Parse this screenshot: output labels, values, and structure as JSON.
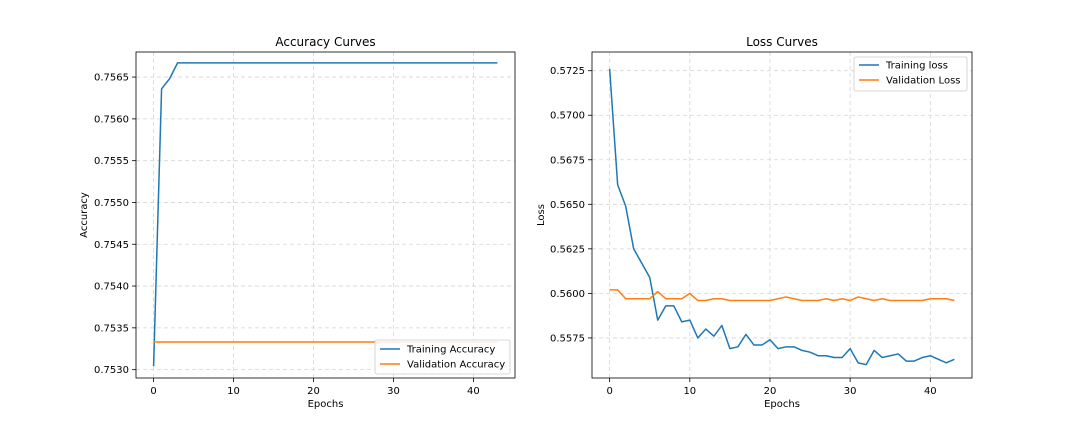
{
  "chart_data": [
    {
      "type": "line",
      "title": "Accuracy Curves",
      "xlabel": "Epochs",
      "ylabel": "Accuracy",
      "xlim": [
        -2.2,
        45.2
      ],
      "ylim": [
        0.7529,
        0.7568
      ],
      "xticks": [
        0,
        10,
        20,
        30,
        40
      ],
      "yticks": [
        0.753,
        0.7535,
        0.754,
        0.7545,
        0.755,
        0.7555,
        0.756,
        0.7565
      ],
      "ytick_labels": [
        "0.7530",
        "0.7535",
        "0.7540",
        "0.7545",
        "0.7550",
        "0.7555",
        "0.7560",
        "0.7565"
      ],
      "grid": true,
      "legend_position": "lower-right",
      "series": [
        {
          "name": "Training Accuracy",
          "color": "#1f77b4",
          "x": [
            0,
            1,
            2,
            3,
            4,
            5,
            6,
            7,
            8,
            9,
            10,
            11,
            12,
            13,
            14,
            15,
            16,
            17,
            18,
            19,
            20,
            21,
            22,
            23,
            24,
            25,
            26,
            27,
            28,
            29,
            30,
            31,
            32,
            33,
            34,
            35,
            36,
            37,
            38,
            39,
            40,
            41,
            42,
            43
          ],
          "values": [
            0.75304,
            0.75636,
            0.75648,
            0.75667,
            0.75667,
            0.75667,
            0.75667,
            0.75667,
            0.75667,
            0.75667,
            0.75667,
            0.75667,
            0.75667,
            0.75667,
            0.75667,
            0.75667,
            0.75667,
            0.75667,
            0.75667,
            0.75667,
            0.75667,
            0.75667,
            0.75667,
            0.75667,
            0.75667,
            0.75667,
            0.75667,
            0.75667,
            0.75667,
            0.75667,
            0.75667,
            0.75667,
            0.75667,
            0.75667,
            0.75667,
            0.75667,
            0.75667,
            0.75667,
            0.75667,
            0.75667,
            0.75667,
            0.75667,
            0.75667,
            0.75667
          ]
        },
        {
          "name": "Validation Accuracy",
          "color": "#ff7f0e",
          "x": [
            0,
            1,
            2,
            3,
            4,
            5,
            6,
            7,
            8,
            9,
            10,
            11,
            12,
            13,
            14,
            15,
            16,
            17,
            18,
            19,
            20,
            21,
            22,
            23,
            24,
            25,
            26,
            27,
            28,
            29,
            30,
            31,
            32,
            33,
            34,
            35,
            36,
            37,
            38,
            39,
            40,
            41,
            42,
            43
          ],
          "values": [
            0.75333,
            0.75333,
            0.75333,
            0.75333,
            0.75333,
            0.75333,
            0.75333,
            0.75333,
            0.75333,
            0.75333,
            0.75333,
            0.75333,
            0.75333,
            0.75333,
            0.75333,
            0.75333,
            0.75333,
            0.75333,
            0.75333,
            0.75333,
            0.75333,
            0.75333,
            0.75333,
            0.75333,
            0.75333,
            0.75333,
            0.75333,
            0.75333,
            0.75333,
            0.75333,
            0.75333,
            0.75333,
            0.75333,
            0.75333,
            0.75333,
            0.75333,
            0.75333,
            0.75333,
            0.75333,
            0.75333,
            0.75333,
            0.75333,
            0.75333,
            0.75333
          ]
        }
      ]
    },
    {
      "type": "line",
      "title": "Loss Curves",
      "xlabel": "Epochs",
      "ylabel": "Loss",
      "xlim": [
        -2.2,
        45.2
      ],
      "ylim": [
        0.55525,
        0.57355
      ],
      "xticks": [
        0,
        10,
        20,
        30,
        40
      ],
      "yticks": [
        0.5575,
        0.56,
        0.5625,
        0.565,
        0.5675,
        0.57,
        0.5725
      ],
      "ytick_labels": [
        "0.5575",
        "0.5600",
        "0.5625",
        "0.5650",
        "0.5675",
        "0.5700",
        "0.5725"
      ],
      "grid": true,
      "legend_position": "upper-right",
      "series": [
        {
          "name": "Training loss",
          "color": "#1f77b4",
          "x": [
            0,
            1,
            2,
            3,
            4,
            5,
            6,
            7,
            8,
            9,
            10,
            11,
            12,
            13,
            14,
            15,
            16,
            17,
            18,
            19,
            20,
            21,
            22,
            23,
            24,
            25,
            26,
            27,
            28,
            29,
            30,
            31,
            32,
            33,
            34,
            35,
            36,
            37,
            38,
            39,
            40,
            41,
            42,
            43
          ],
          "values": [
            0.5726,
            0.5661,
            0.5649,
            0.5625,
            0.5617,
            0.5609,
            0.5585,
            0.5593,
            0.5593,
            0.5584,
            0.5585,
            0.5575,
            0.558,
            0.5576,
            0.5582,
            0.5569,
            0.557,
            0.5577,
            0.5571,
            0.5571,
            0.5574,
            0.5569,
            0.557,
            0.557,
            0.5568,
            0.5567,
            0.5565,
            0.5565,
            0.5564,
            0.5564,
            0.5569,
            0.5561,
            0.556,
            0.5568,
            0.5564,
            0.5565,
            0.5566,
            0.5562,
            0.5562,
            0.5564,
            0.5565,
            0.5563,
            0.5561,
            0.5563
          ]
        },
        {
          "name": "Validation Loss",
          "color": "#ff7f0e",
          "x": [
            0,
            1,
            2,
            3,
            4,
            5,
            6,
            7,
            8,
            9,
            10,
            11,
            12,
            13,
            14,
            15,
            16,
            17,
            18,
            19,
            20,
            21,
            22,
            23,
            24,
            25,
            26,
            27,
            28,
            29,
            30,
            31,
            32,
            33,
            34,
            35,
            36,
            37,
            38,
            39,
            40,
            41,
            42,
            43
          ],
          "values": [
            0.5602,
            0.5602,
            0.5597,
            0.5597,
            0.5597,
            0.5597,
            0.5601,
            0.5597,
            0.5597,
            0.5597,
            0.56,
            0.5596,
            0.5596,
            0.5597,
            0.5597,
            0.5596,
            0.5596,
            0.5596,
            0.5596,
            0.5596,
            0.5596,
            0.5597,
            0.5598,
            0.5597,
            0.5596,
            0.5596,
            0.5596,
            0.5597,
            0.5596,
            0.5597,
            0.5596,
            0.5598,
            0.5597,
            0.5596,
            0.5597,
            0.5596,
            0.5596,
            0.5596,
            0.5596,
            0.5596,
            0.5597,
            0.5597,
            0.5597,
            0.5596
          ]
        }
      ]
    }
  ]
}
